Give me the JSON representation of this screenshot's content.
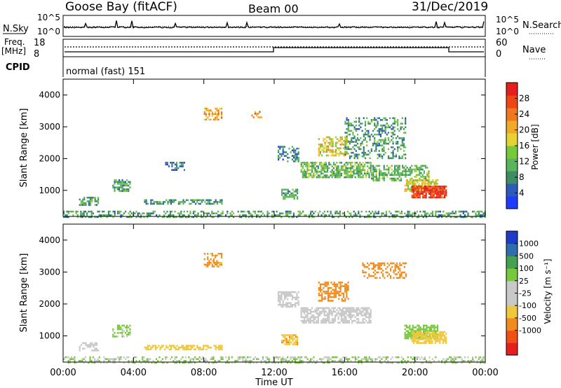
{
  "header": {
    "station": "Goose Bay (fitACF)",
    "beam": "Beam 00",
    "date": "31/Dec/2019"
  },
  "noise_panel": {
    "left_label": "N.Sky",
    "right_label": "N.Search",
    "left_ticks": [
      "10^5",
      "10^0"
    ],
    "right_ticks": [
      "10^5",
      "10^0"
    ]
  },
  "freq_panel": {
    "left_label_line1": "Freq.",
    "left_label_line2": "[MHz]",
    "left_ticks": [
      "18",
      "8"
    ],
    "right_label": "Nave",
    "right_ticks": [
      "60",
      "0"
    ]
  },
  "cpid": {
    "label": "CPID",
    "mode_text": "normal (fast) 151"
  },
  "time_axis": {
    "label": "Time UT",
    "ticks": [
      "00:00",
      "04:00",
      "08:00",
      "12:00",
      "16:00",
      "20:00",
      "00:00"
    ]
  },
  "colors": {
    "power": [
      "#1e3cff",
      "#2e5ab8",
      "#3c8c64",
      "#5ab45a",
      "#78c83c",
      "#e6d232",
      "#f0aa28",
      "#f07820",
      "#f04614",
      "#e61e1e"
    ],
    "velocity": [
      "#e61e1e",
      "#f05014",
      "#f08c1e",
      "#f0c83c",
      "#c8c8c8",
      "#c8c8c8",
      "#78c83c",
      "#46a050",
      "#2e6eaa",
      "#1e3cc8"
    ]
  },
  "chart_data": [
    {
      "type": "heatmap",
      "name": "power",
      "xlabel": "Time UT",
      "ylabel": "Slant Range [km]",
      "x_range_hours": [
        0,
        24
      ],
      "ylim": [
        180,
        4500
      ],
      "yticks": [
        1000,
        2000,
        3000,
        4000
      ],
      "colorbar": {
        "label": "Power [dB]",
        "range": [
          0,
          32
        ],
        "ticks": [
          4,
          8,
          12,
          16,
          20,
          24,
          28
        ]
      },
      "echo_regions": [
        {
          "t": [
            0.0,
            24.0
          ],
          "r": [
            180,
            360
          ],
          "value": 10,
          "density": 0.45
        },
        {
          "t": [
            0.9,
            2.0
          ],
          "r": [
            550,
            800
          ],
          "value": 10,
          "density": 0.6
        },
        {
          "t": [
            2.8,
            3.8
          ],
          "r": [
            1000,
            1350
          ],
          "value": 10,
          "density": 0.6
        },
        {
          "t": [
            4.6,
            9.0
          ],
          "r": [
            560,
            720
          ],
          "value": 9,
          "density": 0.6
        },
        {
          "t": [
            5.8,
            6.9
          ],
          "r": [
            1650,
            1900
          ],
          "value": 6,
          "density": 0.4
        },
        {
          "t": [
            8.0,
            9.0
          ],
          "r": [
            3200,
            3600
          ],
          "value": 22,
          "density": 0.5
        },
        {
          "t": [
            10.7,
            11.3
          ],
          "r": [
            3300,
            3500
          ],
          "value": 22,
          "density": 0.5
        },
        {
          "t": [
            12.4,
            13.3
          ],
          "r": [
            750,
            1050
          ],
          "value": 10,
          "density": 0.7
        },
        {
          "t": [
            12.2,
            13.4
          ],
          "r": [
            1900,
            2400
          ],
          "value": 7,
          "density": 0.5
        },
        {
          "t": [
            13.5,
            17.5
          ],
          "r": [
            1400,
            1900
          ],
          "value": 12,
          "density": 0.7
        },
        {
          "t": [
            14.5,
            16.2
          ],
          "r": [
            2100,
            2700
          ],
          "value": 18,
          "density": 0.55
        },
        {
          "t": [
            16.0,
            19.5
          ],
          "r": [
            2000,
            3300
          ],
          "value": 9,
          "density": 0.35
        },
        {
          "t": [
            17.5,
            20.8
          ],
          "r": [
            1300,
            1800
          ],
          "value": 12,
          "density": 0.55
        },
        {
          "t": [
            19.4,
            21.3
          ],
          "r": [
            950,
            1350
          ],
          "value": 18,
          "density": 0.75
        },
        {
          "t": [
            19.8,
            21.8
          ],
          "r": [
            800,
            1150
          ],
          "value": 28,
          "density": 0.85
        }
      ]
    },
    {
      "type": "heatmap",
      "name": "velocity",
      "xlabel": "Time UT",
      "ylabel": "Slant Range [km]",
      "x_range_hours": [
        0,
        24
      ],
      "ylim": [
        180,
        4500
      ],
      "yticks": [
        1000,
        2000,
        3000,
        4000
      ],
      "colorbar": {
        "label": "Velocity [m s⁻¹]",
        "ticks": [
          "1000",
          "500",
          "100",
          "25",
          "-25",
          "-100",
          "-500",
          "-1000"
        ]
      },
      "echo_regions": [
        {
          "t": [
            0.0,
            24.0
          ],
          "r": [
            180,
            360
          ],
          "value": 25,
          "density": 0.45
        },
        {
          "t": [
            0.9,
            2.0
          ],
          "r": [
            550,
            800
          ],
          "value": 0,
          "density": 0.6
        },
        {
          "t": [
            2.8,
            3.8
          ],
          "r": [
            1000,
            1350
          ],
          "value": 40,
          "density": 0.6
        },
        {
          "t": [
            4.6,
            9.0
          ],
          "r": [
            560,
            720
          ],
          "value": -60,
          "density": 0.6
        },
        {
          "t": [
            8.0,
            9.0
          ],
          "r": [
            3200,
            3600
          ],
          "value": -150,
          "density": 0.5
        },
        {
          "t": [
            12.4,
            13.3
          ],
          "r": [
            750,
            1050
          ],
          "value": -80,
          "density": 0.7
        },
        {
          "t": [
            12.2,
            13.4
          ],
          "r": [
            1900,
            2400
          ],
          "value": 0,
          "density": 0.6
        },
        {
          "t": [
            13.5,
            17.5
          ],
          "r": [
            1400,
            1900
          ],
          "value": 0,
          "density": 0.7
        },
        {
          "t": [
            14.5,
            16.2
          ],
          "r": [
            2100,
            2700
          ],
          "value": -300,
          "density": 0.55
        },
        {
          "t": [
            17.0,
            19.5
          ],
          "r": [
            2800,
            3300
          ],
          "value": -300,
          "density": 0.4
        },
        {
          "t": [
            19.4,
            21.3
          ],
          "r": [
            950,
            1350
          ],
          "value": 60,
          "density": 0.75
        },
        {
          "t": [
            19.8,
            21.8
          ],
          "r": [
            800,
            1150
          ],
          "value": -60,
          "density": 0.8
        }
      ]
    }
  ]
}
